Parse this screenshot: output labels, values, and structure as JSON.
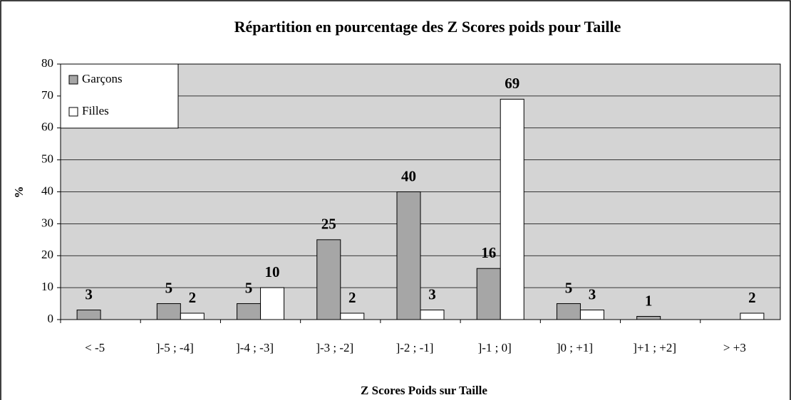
{
  "chart_data": {
    "type": "bar",
    "title": "Répartition en pourcentage des Z Scores poids pour Taille",
    "xlabel": "Z Scores Poids sur Taille",
    "ylabel": "%",
    "categories": [
      "< -5",
      "]-5 ; -4]",
      "]-4 ; -3]",
      "]-3 ; -2]",
      "]-2 ; -1]",
      "]-1 ; 0]",
      "]0 ; +1]",
      "]+1 ; +2]",
      "> +3"
    ],
    "series": [
      {
        "name": "Garçons",
        "color": "#a6a6a6",
        "values": [
          3,
          5,
          5,
          25,
          40,
          16,
          5,
          1,
          null
        ]
      },
      {
        "name": "Filles",
        "color": "#ffffff",
        "values": [
          null,
          2,
          10,
          2,
          3,
          69,
          3,
          null,
          2
        ]
      }
    ],
    "ylim": [
      0,
      80
    ],
    "yticks": [
      0,
      10,
      20,
      30,
      40,
      50,
      60,
      70,
      80
    ],
    "grid": true,
    "legend": "top-left"
  }
}
